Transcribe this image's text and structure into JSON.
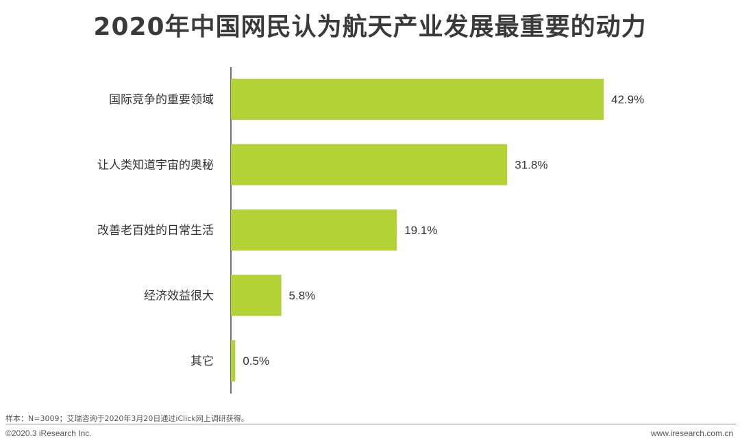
{
  "chart_data": {
    "type": "bar",
    "orientation": "horizontal",
    "title": "2020年中国网民认为航天产业发展最重要的动力",
    "categories": [
      "国际竞争的重要领域",
      "让人类知道宇宙的奥秘",
      "改善老百姓的日常生活",
      "经济效益很大",
      "其它"
    ],
    "values": [
      42.9,
      31.8,
      19.1,
      5.8,
      0.5
    ],
    "value_labels": [
      "42.9%",
      "31.8%",
      "19.1%",
      "5.8%",
      "0.5%"
    ],
    "unit": "%",
    "xlim": [
      0,
      50
    ],
    "grid": false,
    "bar_color": "#b2d235"
  },
  "footer": {
    "note": "样本：N=3009；艾瑞咨询于2020年3月20日通过iClick网上调研获得。",
    "copyright": "©2020.3 iResearch Inc.",
    "website": "www.iresearch.com.cn"
  }
}
